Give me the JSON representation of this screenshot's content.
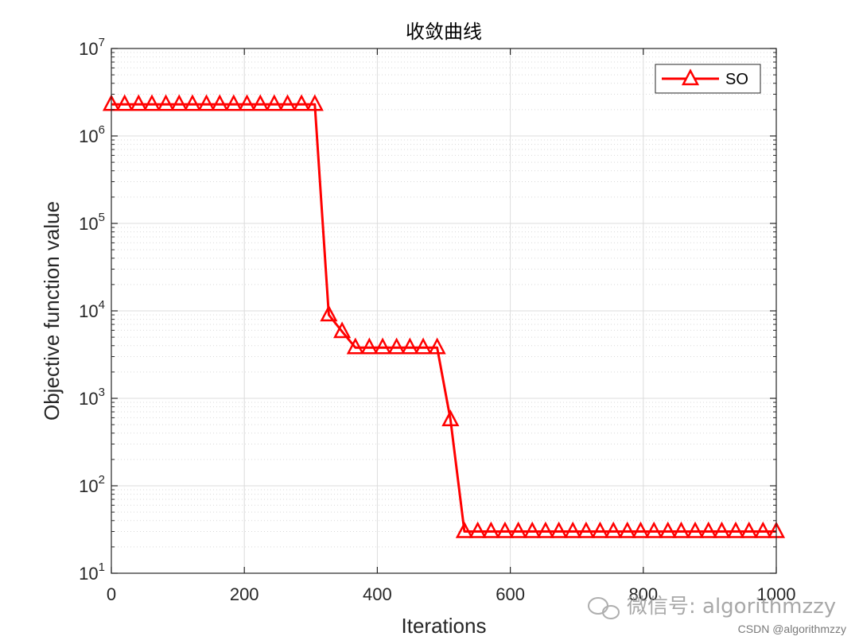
{
  "chart_data": {
    "type": "line",
    "title": "收敛曲线",
    "xlabel": "Iterations",
    "ylabel": "Objective function value",
    "xlim": [
      0,
      1000
    ],
    "ylim": [
      10,
      10000000
    ],
    "yscale": "log",
    "grid": true,
    "minor_grid": true,
    "legend_position": "top-right",
    "x_ticks": [
      "0",
      "200",
      "400",
      "600",
      "800",
      "1000"
    ],
    "y_ticks": [
      {
        "base": "10",
        "exp": "1"
      },
      {
        "base": "10",
        "exp": "2"
      },
      {
        "base": "10",
        "exp": "3"
      },
      {
        "base": "10",
        "exp": "4"
      },
      {
        "base": "10",
        "exp": "5"
      },
      {
        "base": "10",
        "exp": "6"
      },
      {
        "base": "10",
        "exp": "7"
      }
    ],
    "series": [
      {
        "name": "SO",
        "color": "#ff0000",
        "marker": "triangle",
        "x": [
          0,
          20,
          41,
          61,
          82,
          102,
          122,
          143,
          163,
          184,
          204,
          224,
          245,
          265,
          286,
          306,
          327,
          347,
          367,
          388,
          408,
          429,
          449,
          469,
          490,
          510,
          531,
          551,
          571,
          592,
          612,
          633,
          653,
          673,
          694,
          714,
          735,
          755,
          776,
          796,
          816,
          837,
          857,
          878,
          898,
          918,
          939,
          959,
          980,
          1000
        ],
        "y": [
          2300000,
          2300000,
          2300000,
          2300000,
          2300000,
          2300000,
          2300000,
          2300000,
          2300000,
          2300000,
          2300000,
          2300000,
          2300000,
          2300000,
          2300000,
          2300000,
          9000,
          5800,
          3800,
          3800,
          3800,
          3800,
          3800,
          3800,
          3800,
          570,
          30,
          30,
          30,
          30,
          30,
          30,
          30,
          30,
          30,
          30,
          30,
          30,
          30,
          30,
          30,
          30,
          30,
          30,
          30,
          30,
          30,
          30,
          30,
          30
        ]
      }
    ]
  },
  "watermark": {
    "text": "微信号: algorithmzzy",
    "icon": "wechat-icon"
  },
  "credit": "CSDN @algorithmzzy"
}
